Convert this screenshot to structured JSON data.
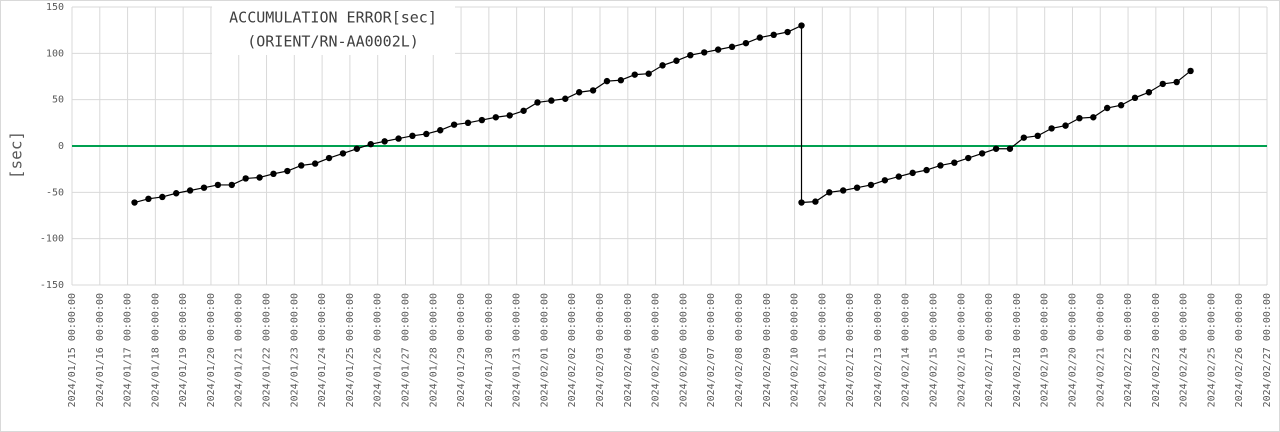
{
  "chart_data": {
    "type": "line",
    "title": "ACCUMULATION ERROR[sec]",
    "subtitle": "(ORIENT/RN-AA0002L)",
    "y_label": "[sec]",
    "color": "#000000",
    "zero_line_color": "#00a050",
    "grid": true,
    "ylim": [
      -150,
      150
    ],
    "yticks": [
      -150,
      -100,
      -50,
      0,
      50,
      100,
      150
    ],
    "xlim": [
      "2024/01/15 00:00:00",
      "2024/02/27 00:00:00"
    ],
    "xticks": [
      "2024/01/15 00:00:00",
      "2024/01/16 00:00:00",
      "2024/01/17 00:00:00",
      "2024/01/18 00:00:00",
      "2024/01/19 00:00:00",
      "2024/01/20 00:00:00",
      "2024/01/21 00:00:00",
      "2024/01/22 00:00:00",
      "2024/01/23 00:00:00",
      "2024/01/24 00:00:00",
      "2024/01/25 00:00:00",
      "2024/01/26 00:00:00",
      "2024/01/27 00:00:00",
      "2024/01/28 00:00:00",
      "2024/01/29 00:00:00",
      "2024/01/30 00:00:00",
      "2024/01/31 00:00:00",
      "2024/02/01 00:00:00",
      "2024/02/02 00:00:00",
      "2024/02/03 00:00:00",
      "2024/02/04 00:00:00",
      "2024/02/05 00:00:00",
      "2024/02/06 00:00:00",
      "2024/02/07 00:00:00",
      "2024/02/08 00:00:00",
      "2024/02/09 00:00:00",
      "2024/02/10 00:00:00",
      "2024/02/11 00:00:00",
      "2024/02/12 00:00:00",
      "2024/02/13 00:00:00",
      "2024/02/14 00:00:00",
      "2024/02/15 00:00:00",
      "2024/02/16 00:00:00",
      "2024/02/17 00:00:00",
      "2024/02/18 00:00:00",
      "2024/02/19 00:00:00",
      "2024/02/20 00:00:00",
      "2024/02/21 00:00:00",
      "2024/02/22 00:00:00",
      "2024/02/23 00:00:00",
      "2024/02/24 00:00:00",
      "2024/02/25 00:00:00",
      "2024/02/26 00:00:00",
      "2024/02/27 00:00:00"
    ],
    "x": [
      "2024/01/17 06:00:00",
      "2024/01/17 18:00:00",
      "2024/01/18 06:00:00",
      "2024/01/18 18:00:00",
      "2024/01/19 06:00:00",
      "2024/01/19 18:00:00",
      "2024/01/20 06:00:00",
      "2024/01/20 18:00:00",
      "2024/01/21 06:00:00",
      "2024/01/21 18:00:00",
      "2024/01/22 06:00:00",
      "2024/01/22 18:00:00",
      "2024/01/23 06:00:00",
      "2024/01/23 18:00:00",
      "2024/01/24 06:00:00",
      "2024/01/24 18:00:00",
      "2024/01/25 06:00:00",
      "2024/01/25 18:00:00",
      "2024/01/26 06:00:00",
      "2024/01/26 18:00:00",
      "2024/01/27 06:00:00",
      "2024/01/27 18:00:00",
      "2024/01/28 06:00:00",
      "2024/01/28 18:00:00",
      "2024/01/29 06:00:00",
      "2024/01/29 18:00:00",
      "2024/01/30 06:00:00",
      "2024/01/30 18:00:00",
      "2024/01/31 06:00:00",
      "2024/01/31 18:00:00",
      "2024/02/01 06:00:00",
      "2024/02/01 18:00:00",
      "2024/02/02 06:00:00",
      "2024/02/02 18:00:00",
      "2024/02/03 06:00:00",
      "2024/02/03 18:00:00",
      "2024/02/04 06:00:00",
      "2024/02/04 18:00:00",
      "2024/02/05 06:00:00",
      "2024/02/05 18:00:00",
      "2024/02/06 06:00:00",
      "2024/02/06 18:00:00",
      "2024/02/07 06:00:00",
      "2024/02/07 18:00:00",
      "2024/02/08 06:00:00",
      "2024/02/08 18:00:00",
      "2024/02/09 06:00:00",
      "2024/02/09 18:00:00",
      "2024/02/10 06:00:00",
      "2024/02/10 06:00:00",
      "2024/02/10 18:00:00",
      "2024/02/11 06:00:00",
      "2024/02/11 18:00:00",
      "2024/02/12 06:00:00",
      "2024/02/12 18:00:00",
      "2024/02/13 06:00:00",
      "2024/02/13 18:00:00",
      "2024/02/14 06:00:00",
      "2024/02/14 18:00:00",
      "2024/02/15 06:00:00",
      "2024/02/15 18:00:00",
      "2024/02/16 06:00:00",
      "2024/02/16 18:00:00",
      "2024/02/17 06:00:00",
      "2024/02/17 18:00:00",
      "2024/02/18 06:00:00",
      "2024/02/18 18:00:00",
      "2024/02/19 06:00:00",
      "2024/02/19 18:00:00",
      "2024/02/20 06:00:00",
      "2024/02/20 18:00:00",
      "2024/02/21 06:00:00",
      "2024/02/21 18:00:00",
      "2024/02/22 06:00:00",
      "2024/02/22 18:00:00",
      "2024/02/23 06:00:00",
      "2024/02/23 18:00:00",
      "2024/02/24 06:00:00"
    ],
    "values": [
      -61,
      -57,
      -55,
      -51,
      -48,
      -45,
      -42,
      -42,
      -35,
      -34,
      -30,
      -27,
      -21,
      -19,
      -13,
      -8,
      -3,
      2,
      5,
      8,
      11,
      13,
      17,
      23,
      25,
      28,
      31,
      33,
      38,
      47,
      49,
      51,
      58,
      60,
      70,
      71,
      77,
      78,
      87,
      92,
      98,
      101,
      104,
      107,
      111,
      117,
      120,
      123,
      130,
      -61,
      -60,
      -50,
      -48,
      -45,
      -42,
      -37,
      -33,
      -29,
      -26,
      -21,
      -18,
      -13,
      -8,
      -3,
      -3,
      9,
      11,
      19,
      22,
      30,
      31,
      41,
      44,
      52,
      58,
      67,
      69,
      81
    ]
  }
}
